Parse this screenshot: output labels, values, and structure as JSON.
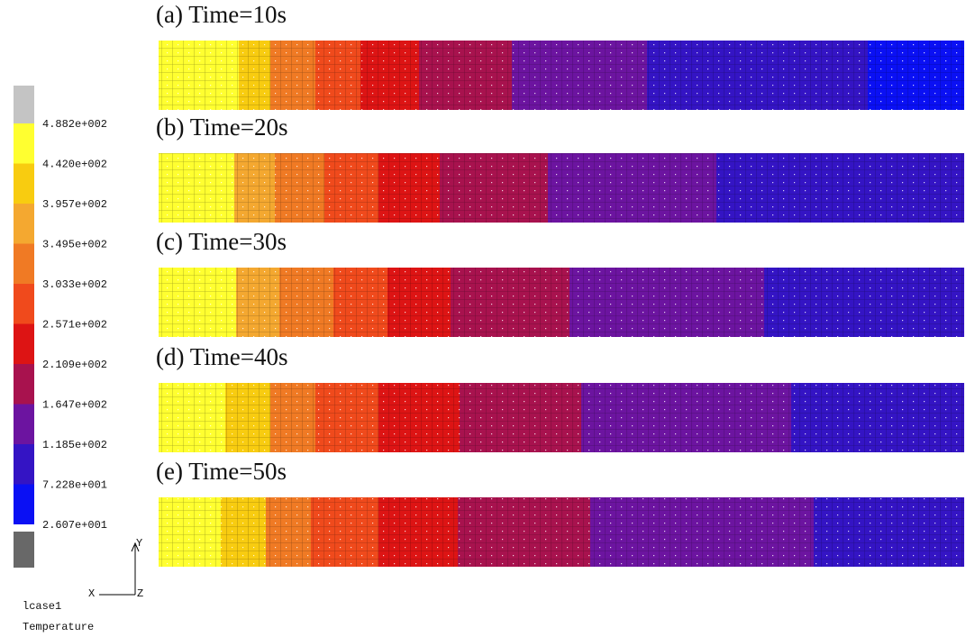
{
  "legend": {
    "labels": [
      "4.882e+002",
      "4.420e+002",
      "3.957e+002",
      "3.495e+002",
      "3.033e+002",
      "2.571e+002",
      "2.109e+002",
      "1.647e+002",
      "1.185e+002",
      "7.228e+001",
      "2.607e+001"
    ],
    "colors": [
      "#c4c4c4",
      "#ffff30",
      "#f8cc10",
      "#f4a830",
      "#f07a24",
      "#f04a1c",
      "#dd1414",
      "#a8124e",
      "#6c14a0",
      "#3414c4",
      "#0a10f4",
      "#686868"
    ]
  },
  "panels": [
    {
      "title": "(a) Time=10s"
    },
    {
      "title": "(b) Time=20s"
    },
    {
      "title": "(c) Time=30s"
    },
    {
      "title": "(d) Time=40s"
    },
    {
      "title": "(e) Time=50s"
    }
  ],
  "case": "lcase1",
  "variable": "Temperature",
  "axes": {
    "x": "X",
    "y": "Y",
    "z": "Z"
  }
}
